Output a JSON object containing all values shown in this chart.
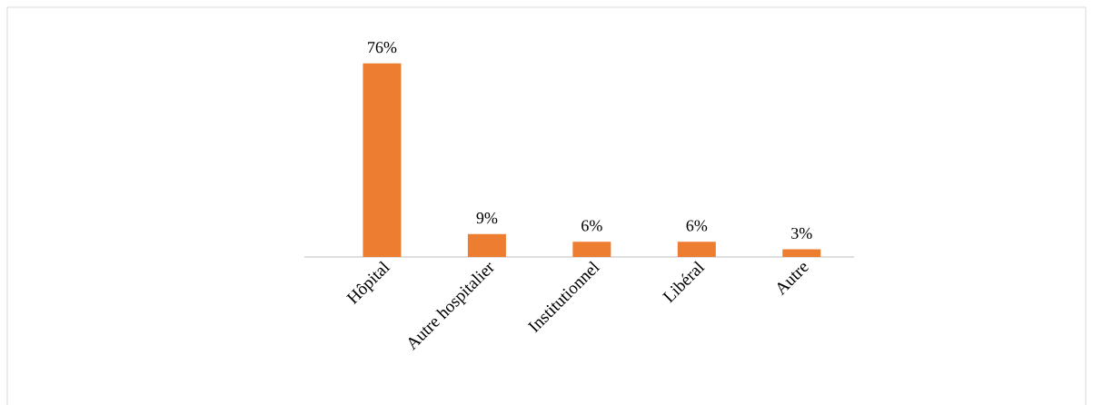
{
  "chart_data": {
    "type": "bar",
    "categories": [
      "Hôpital",
      "Autre hospitalier",
      "Institutionnel",
      "Libéral",
      "Autre"
    ],
    "values": [
      76,
      9,
      6,
      6,
      3
    ],
    "value_labels": [
      "76%",
      "9%",
      "6%",
      "6%",
      "3%"
    ],
    "color": "#ed7d31"
  }
}
